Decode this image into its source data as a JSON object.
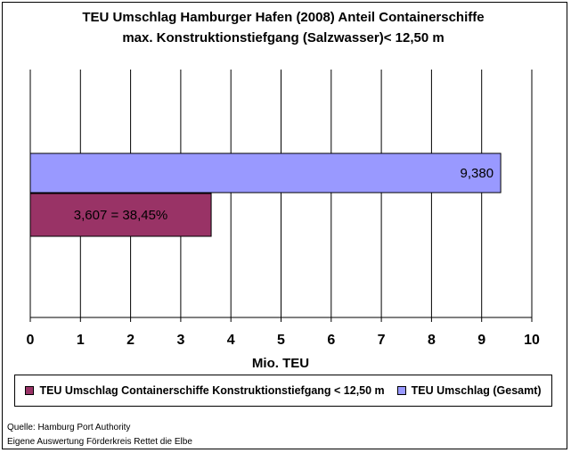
{
  "chart_data": {
    "type": "bar",
    "orientation": "horizontal",
    "title_line1": "TEU Umschlag Hamburger Hafen (2008)  Anteil Containerschiffe",
    "title_line2": "max. Konstruktionstiefgang (Salzwasser)< 12,50 m",
    "xlabel": "Mio. TEU",
    "ylabel": "",
    "xlim": [
      0,
      10
    ],
    "xticks": [
      "0",
      "1",
      "2",
      "3",
      "4",
      "5",
      "6",
      "7",
      "8",
      "9",
      "10"
    ],
    "grid": "vertical",
    "legend_position": "bottom",
    "series": [
      {
        "name": "TEU Umschlag (Gesamt)",
        "value": 9.38,
        "label": "9,380",
        "color": "#9999ff"
      },
      {
        "name": "TEU Umschlag Containerschiffe Konstruktionstiefgang < 12,50 m",
        "value": 3.607,
        "label": "3,607 = 38,45%",
        "color": "#993366"
      }
    ]
  },
  "legend": {
    "item1": "TEU Umschlag Containerschiffe Konstruktionstiefgang < 12,50 m",
    "item2": "TEU Umschlag (Gesamt)"
  },
  "source": {
    "line1": "Quelle: Hamburg Port Authority",
    "line2": "Eigene Auswertung Förderkreis Rettet die Elbe"
  }
}
